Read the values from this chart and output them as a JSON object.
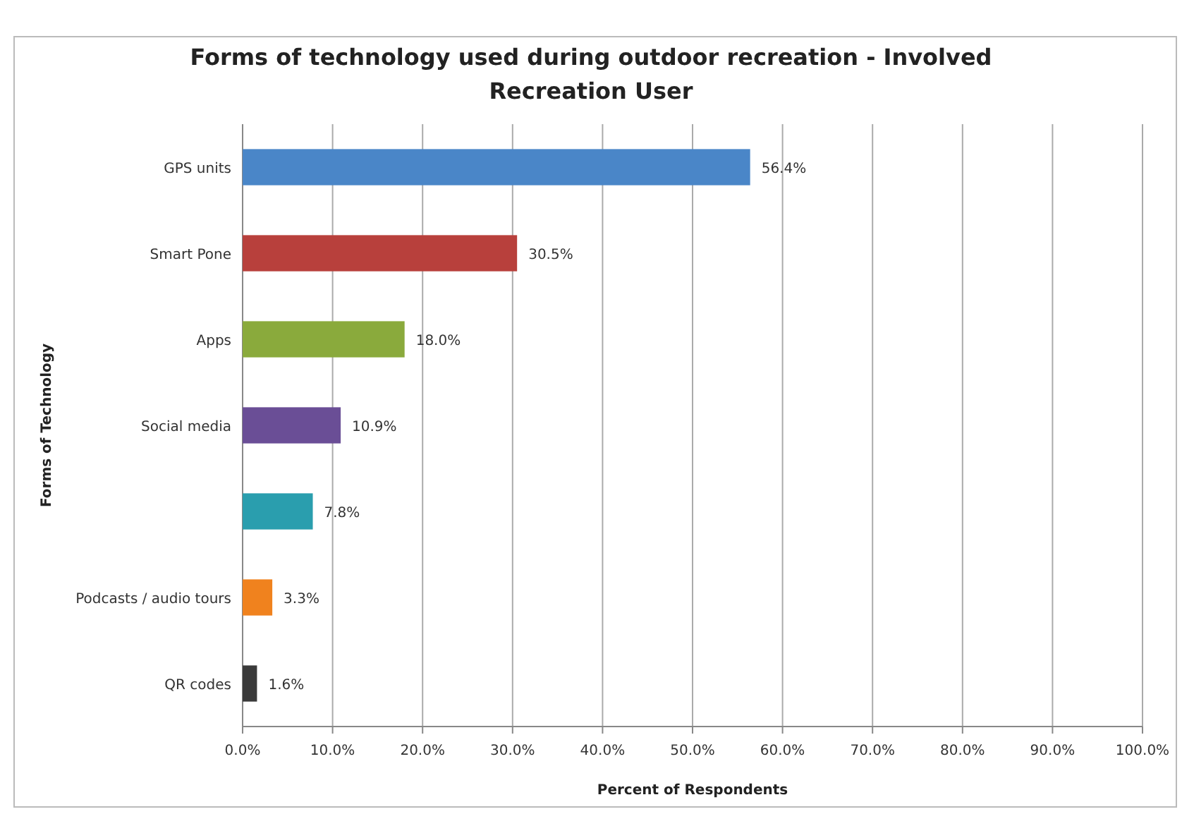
{
  "chart_data": {
    "type": "bar",
    "orientation": "horizontal",
    "title": "Forms of technology used during outdoor recreation - Involved Recreation User",
    "xlabel": "Percent of Respondents",
    "ylabel": "Forms of Technology",
    "categories": [
      "GPS units",
      "Smart Pone",
      "Apps",
      "Social media",
      null,
      "Podcasts / audio tours",
      "QR codes"
    ],
    "values": [
      56.4,
      30.5,
      18.0,
      10.9,
      7.8,
      3.3,
      1.6
    ],
    "colors": [
      "#4a86c8",
      "#b8403c",
      "#8aaa3c",
      "#6a4e96",
      "#2a9eae",
      "#f0821e",
      "#3a3a3a"
    ],
    "value_labels": [
      "56.4%",
      "30.5%",
      "18.0%",
      "10.9%",
      "7.8%",
      "3.3%",
      "1.6%"
    ],
    "xlim": [
      0,
      100
    ],
    "xticks": [
      {
        "value": 0,
        "label": "0.0%"
      },
      {
        "value": 10,
        "label": "10.0%"
      },
      {
        "value": 20,
        "label": "20.0%"
      },
      {
        "value": 30,
        "label": "30.0%"
      },
      {
        "value": 40,
        "label": "40.0%"
      },
      {
        "value": 50,
        "label": "50.0%"
      },
      {
        "value": 60,
        "label": "60.0%"
      },
      {
        "value": 70,
        "label": "70.0%"
      },
      {
        "value": 80,
        "label": "80.0%"
      },
      {
        "value": 90,
        "label": "90.0%"
      },
      {
        "value": 100,
        "label": "100.0%"
      }
    ],
    "grid": "x"
  }
}
